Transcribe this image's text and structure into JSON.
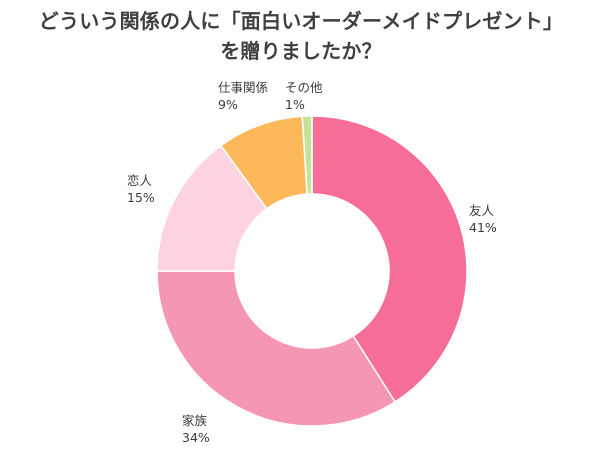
{
  "title": {
    "line1": "どういう関係の人に「面白いオーダーメイドプレゼント」",
    "line2": "を贈りましたか？"
  },
  "chart_data": {
    "type": "pie",
    "variant": "donut",
    "title": "どういう関係の人に「面白いオーダーメイドプレゼント」を贈りましたか？",
    "categories": [
      "友人",
      "家族",
      "恋人",
      "仕事関係",
      "その他"
    ],
    "values": [
      41,
      34,
      15,
      9,
      1
    ],
    "value_labels": [
      "41%",
      "34%",
      "15%",
      "9%",
      "1%"
    ],
    "colors": [
      "#f66d98",
      "#f596b3",
      "#fdd3e1",
      "#fcb859",
      "#c5e29a"
    ],
    "unit": "%",
    "start": "top, clockwise",
    "legend": "none"
  }
}
